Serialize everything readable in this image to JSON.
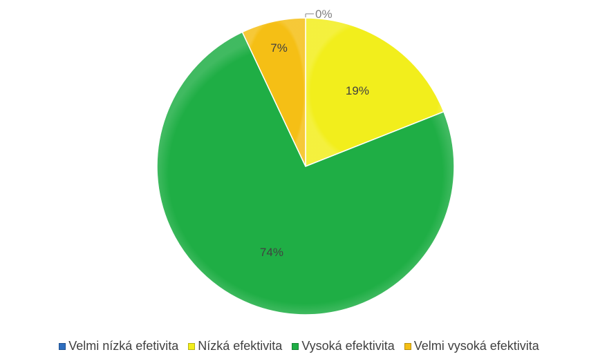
{
  "chart_data": {
    "type": "pie",
    "title": "",
    "start_angle_deg": 0,
    "direction": "clockwise",
    "slices": [
      {
        "label": "Velmi nízká efetivita",
        "value": 0,
        "display": "0%",
        "color": "#2e6ebf"
      },
      {
        "label": "Nízká efektivita",
        "value": 19,
        "display": "19%",
        "color": "#f2ee1c"
      },
      {
        "label": "Vysoká efektivita",
        "value": 74,
        "display": "74%",
        "color": "#1fae45"
      },
      {
        "label": "Velmi vysoká efektivita",
        "value": 7,
        "display": "7%",
        "color": "#f5bf15"
      }
    ],
    "legend_position": "bottom"
  }
}
